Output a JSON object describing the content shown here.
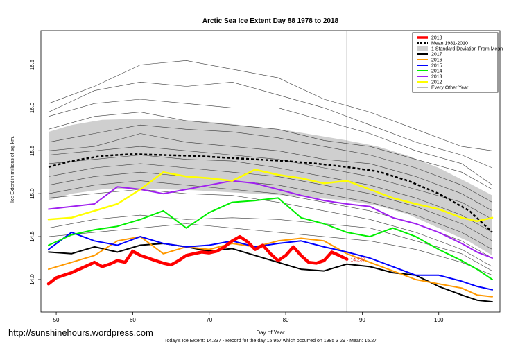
{
  "chart_data": {
    "type": "line",
    "title": "Arctic Sea Ice Extent Day 88 1978 to 2018",
    "xlabel": "Day of Year",
    "ylabel": "Ice Extent in millions of sq. km.",
    "xlim": [
      48,
      108
    ],
    "ylim": [
      13.62,
      16.9
    ],
    "xticks": [
      50,
      60,
      70,
      80,
      90,
      100
    ],
    "yticks": [
      14.0,
      14.5,
      15.0,
      15.5,
      16.0,
      16.5
    ],
    "vline_day": 88,
    "current_marker": {
      "day": 88,
      "value": 14.237,
      "label": "14.237"
    },
    "footer": "Today's Ice Extent: 14.237  - Record for the day  15.957 which occurred on 1985 3 29  - Mean: 15.27",
    "watermark": "http://sunshinehours.wordpress.com",
    "legend": {
      "position": "top-right",
      "entries": [
        {
          "label": "2018",
          "color": "#ff0000",
          "style": "thick"
        },
        {
          "label": "Mean 1981-2010",
          "color": "#000000",
          "style": "dotted"
        },
        {
          "label": "1 Standard Deviation From Mean",
          "color": "#cfcfcf",
          "style": "box"
        },
        {
          "label": "2017",
          "color": "#000000",
          "style": "line"
        },
        {
          "label": "2016",
          "color": "#ff9900",
          "style": "line"
        },
        {
          "label": "2015",
          "color": "#0000ff",
          "style": "line"
        },
        {
          "label": "2014",
          "color": "#00ee00",
          "style": "line"
        },
        {
          "label": "2013",
          "color": "#a020f0",
          "style": "line"
        },
        {
          "label": "2012",
          "color": "#ffff00",
          "style": "line"
        },
        {
          "label": "Every Other Year",
          "color": "#555555",
          "style": "thin"
        }
      ]
    },
    "mean": {
      "x": [
        49,
        52,
        56,
        60,
        64,
        68,
        72,
        76,
        80,
        84,
        88,
        92,
        96,
        100,
        104,
        107
      ],
      "y": [
        15.31,
        15.38,
        15.44,
        15.46,
        15.45,
        15.44,
        15.42,
        15.4,
        15.38,
        15.35,
        15.31,
        15.26,
        15.15,
        15.0,
        14.8,
        14.55
      ]
    },
    "sd_upper": {
      "x": [
        49,
        52,
        56,
        60,
        64,
        68,
        72,
        76,
        80,
        84,
        88,
        92,
        96,
        100,
        104,
        107
      ],
      "y": [
        15.72,
        15.8,
        15.86,
        15.87,
        15.87,
        15.85,
        15.82,
        15.78,
        15.74,
        15.68,
        15.62,
        15.55,
        15.44,
        15.3,
        15.12,
        14.98
      ]
    },
    "sd_lower": {
      "x": [
        49,
        52,
        56,
        60,
        64,
        68,
        72,
        76,
        80,
        84,
        88,
        92,
        96,
        100,
        104,
        107
      ],
      "y": [
        14.92,
        15.0,
        15.05,
        15.06,
        15.05,
        15.04,
        15.02,
        15.0,
        14.98,
        14.95,
        14.92,
        14.86,
        14.76,
        14.6,
        14.44,
        14.28
      ]
    },
    "series": [
      {
        "name": "2018",
        "color": "#ff0000",
        "width": 4.5,
        "x": [
          49,
          50,
          51,
          52,
          53,
          54,
          55,
          56,
          57,
          58,
          59,
          60,
          61,
          62,
          63,
          64,
          65,
          66,
          67,
          68,
          69,
          70,
          71,
          72,
          73,
          74,
          75,
          76,
          77,
          78,
          79,
          80,
          81,
          82,
          83,
          84,
          85,
          86,
          87,
          88
        ],
        "y": [
          13.95,
          14.02,
          14.05,
          14.08,
          14.12,
          14.16,
          14.2,
          14.15,
          14.18,
          14.22,
          14.2,
          14.33,
          14.28,
          14.25,
          14.22,
          14.19,
          14.17,
          14.22,
          14.28,
          14.3,
          14.32,
          14.31,
          14.33,
          14.38,
          14.45,
          14.5,
          14.44,
          14.35,
          14.4,
          14.3,
          14.22,
          14.28,
          14.38,
          14.28,
          14.2,
          14.19,
          14.22,
          14.32,
          14.28,
          14.237
        ]
      },
      {
        "name": "2017",
        "color": "#000000",
        "width": 2,
        "x": [
          49,
          52,
          55,
          58,
          61,
          64,
          67,
          70,
          73,
          76,
          79,
          82,
          85,
          88,
          91,
          94,
          97,
          100,
          103,
          105,
          107
        ],
        "y": [
          14.32,
          14.3,
          14.38,
          14.32,
          14.4,
          14.42,
          14.38,
          14.33,
          14.36,
          14.28,
          14.2,
          14.12,
          14.1,
          14.18,
          14.15,
          14.08,
          14.05,
          13.92,
          13.82,
          13.76,
          13.74
        ]
      },
      {
        "name": "2016",
        "color": "#ff9900",
        "width": 2,
        "x": [
          49,
          52,
          55,
          58,
          61,
          64,
          67,
          70,
          73,
          76,
          79,
          82,
          85,
          88,
          91,
          94,
          97,
          100,
          103,
          105,
          107
        ],
        "y": [
          14.12,
          14.2,
          14.28,
          14.45,
          14.5,
          14.3,
          14.38,
          14.35,
          14.42,
          14.38,
          14.45,
          14.48,
          14.45,
          14.3,
          14.2,
          14.1,
          14.0,
          13.95,
          13.9,
          13.82,
          13.8
        ]
      },
      {
        "name": "2015",
        "color": "#0000ff",
        "width": 2,
        "x": [
          49,
          52,
          55,
          58,
          61,
          64,
          67,
          70,
          73,
          76,
          79,
          82,
          85,
          88,
          91,
          94,
          97,
          100,
          103,
          105,
          107
        ],
        "y": [
          14.35,
          14.55,
          14.45,
          14.4,
          14.5,
          14.42,
          14.38,
          14.4,
          14.45,
          14.38,
          14.42,
          14.45,
          14.38,
          14.32,
          14.25,
          14.15,
          14.05,
          14.05,
          13.98,
          13.92,
          13.88
        ]
      },
      {
        "name": "2014",
        "color": "#00ee00",
        "width": 2,
        "x": [
          49,
          52,
          55,
          58,
          61,
          64,
          67,
          70,
          73,
          76,
          79,
          82,
          85,
          88,
          91,
          94,
          97,
          100,
          103,
          105,
          107
        ],
        "y": [
          14.4,
          14.52,
          14.58,
          14.62,
          14.7,
          14.8,
          14.6,
          14.78,
          14.9,
          14.92,
          14.95,
          14.72,
          14.65,
          14.55,
          14.5,
          14.6,
          14.5,
          14.35,
          14.22,
          14.12,
          14.0
        ]
      },
      {
        "name": "2013",
        "color": "#a020f0",
        "width": 2,
        "x": [
          49,
          52,
          55,
          58,
          61,
          64,
          67,
          70,
          73,
          76,
          79,
          82,
          85,
          88,
          91,
          94,
          97,
          100,
          103,
          105,
          107
        ],
        "y": [
          14.82,
          14.85,
          14.88,
          15.08,
          15.05,
          15.0,
          15.05,
          15.1,
          15.15,
          15.12,
          15.05,
          14.98,
          14.92,
          14.88,
          14.85,
          14.72,
          14.65,
          14.55,
          14.42,
          14.32,
          14.25
        ]
      },
      {
        "name": "2012",
        "color": "#ffff00",
        "width": 2.5,
        "x": [
          49,
          52,
          55,
          58,
          61,
          64,
          67,
          70,
          73,
          76,
          79,
          82,
          85,
          88,
          91,
          94,
          97,
          100,
          103,
          105,
          107
        ],
        "y": [
          14.7,
          14.72,
          14.8,
          14.88,
          15.05,
          15.25,
          15.2,
          15.18,
          15.15,
          15.28,
          15.22,
          15.18,
          15.12,
          15.15,
          15.05,
          14.95,
          14.88,
          14.82,
          14.72,
          14.68,
          14.72
        ]
      }
    ],
    "background_series": [
      {
        "x": [
          49,
          55,
          61,
          67,
          73,
          79,
          85,
          91,
          97,
          103,
          107
        ],
        "y": [
          16.05,
          16.25,
          16.5,
          16.55,
          16.45,
          16.35,
          16.1,
          15.95,
          15.75,
          15.55,
          15.5
        ]
      },
      {
        "x": [
          49,
          55,
          61,
          67,
          73,
          79,
          85,
          91,
          97,
          103,
          107
        ],
        "y": [
          15.95,
          16.2,
          16.3,
          16.25,
          16.3,
          16.15,
          16.0,
          15.8,
          15.6,
          15.45,
          15.3
        ]
      },
      {
        "x": [
          49,
          55,
          61,
          67,
          73,
          79,
          85,
          91,
          97,
          103,
          107
        ],
        "y": [
          15.9,
          16.05,
          16.1,
          16.05,
          16.0,
          16.0,
          15.85,
          15.7,
          15.5,
          15.35,
          15.1
        ]
      },
      {
        "x": [
          49,
          55,
          61,
          67,
          73,
          79,
          85,
          91,
          97,
          103,
          107
        ],
        "y": [
          15.75,
          15.9,
          15.95,
          15.85,
          15.8,
          15.75,
          15.62,
          15.55,
          15.4,
          15.25,
          15.05
        ]
      },
      {
        "x": [
          49,
          55,
          61,
          67,
          73,
          79,
          85,
          91,
          97,
          103,
          107
        ],
        "y": [
          15.6,
          15.7,
          15.8,
          15.75,
          15.72,
          15.65,
          15.55,
          15.45,
          15.3,
          15.1,
          14.9
        ]
      },
      {
        "x": [
          49,
          55,
          61,
          67,
          73,
          79,
          85,
          91,
          97,
          103,
          107
        ],
        "y": [
          15.5,
          15.55,
          15.7,
          15.6,
          15.55,
          15.5,
          15.4,
          15.35,
          15.2,
          15.0,
          14.8
        ]
      },
      {
        "x": [
          49,
          55,
          61,
          67,
          73,
          79,
          85,
          91,
          97,
          103,
          107
        ],
        "y": [
          15.45,
          15.5,
          15.55,
          15.5,
          15.45,
          15.4,
          15.3,
          15.2,
          15.05,
          14.9,
          14.7
        ]
      },
      {
        "x": [
          49,
          55,
          61,
          67,
          73,
          79,
          85,
          91,
          97,
          103,
          107
        ],
        "y": [
          15.35,
          15.4,
          15.45,
          15.4,
          15.38,
          15.3,
          15.2,
          15.1,
          14.95,
          14.75,
          14.55
        ]
      },
      {
        "x": [
          49,
          55,
          61,
          67,
          73,
          79,
          85,
          91,
          97,
          103,
          107
        ],
        "y": [
          15.2,
          15.3,
          15.35,
          15.3,
          15.25,
          15.2,
          15.1,
          15.0,
          14.85,
          14.65,
          14.45
        ]
      },
      {
        "x": [
          49,
          55,
          61,
          67,
          73,
          79,
          85,
          91,
          97,
          103,
          107
        ],
        "y": [
          15.1,
          15.2,
          15.25,
          15.2,
          15.15,
          15.1,
          15.0,
          14.9,
          14.75,
          14.55,
          14.35
        ]
      },
      {
        "x": [
          49,
          55,
          61,
          67,
          73,
          79,
          85,
          91,
          97,
          103,
          107
        ],
        "y": [
          15.0,
          15.1,
          15.15,
          15.1,
          15.05,
          15.0,
          14.9,
          14.8,
          14.65,
          14.45,
          14.25
        ]
      },
      {
        "x": [
          49,
          55,
          61,
          67,
          73,
          79,
          85,
          91,
          97,
          103,
          107
        ],
        "y": [
          14.95,
          15.0,
          15.05,
          15.0,
          14.98,
          14.9,
          14.8,
          14.7,
          14.55,
          14.35,
          14.15
        ]
      },
      {
        "x": [
          49,
          55,
          61,
          67,
          73,
          79,
          85,
          91,
          97,
          103,
          107
        ],
        "y": [
          14.6,
          14.7,
          14.75,
          14.7,
          14.72,
          14.7,
          14.65,
          14.6,
          14.45,
          14.3,
          14.1
        ]
      },
      {
        "x": [
          49,
          55,
          61,
          67,
          73,
          79,
          85,
          91,
          97,
          103,
          107
        ],
        "y": [
          14.5,
          14.55,
          14.6,
          14.65,
          14.6,
          14.55,
          14.5,
          14.45,
          14.35,
          14.2,
          14.05
        ]
      }
    ]
  }
}
